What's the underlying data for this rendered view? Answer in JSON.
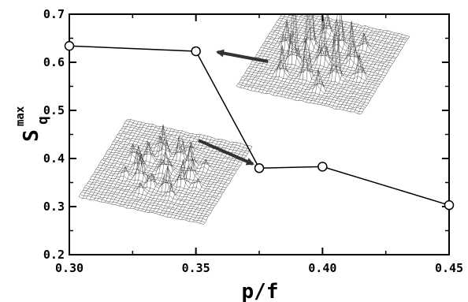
{
  "chart_data": {
    "type": "line",
    "x_label": "p/f",
    "y_label": "S",
    "y_label_sub": "q",
    "y_label_sup": "max",
    "xlim": [
      0.3,
      0.45
    ],
    "ylim": [
      0.2,
      0.7
    ],
    "x_ticks": [
      0.3,
      0.35,
      0.4,
      0.45
    ],
    "x_tick_labels": [
      "0.30",
      "0.35",
      "0.40",
      "0.45"
    ],
    "y_ticks": [
      0.2,
      0.3,
      0.4,
      0.5,
      0.6,
      0.7
    ],
    "y_tick_labels": [
      "0.2",
      "0.3",
      "0.4",
      "0.5",
      "0.6",
      "0.7"
    ],
    "series": [
      {
        "x": [
          0.3,
          0.35,
          0.375,
          0.4,
          0.45
        ],
        "y": [
          0.634,
          0.623,
          0.38,
          0.383,
          0.303
        ],
        "marker": "open-circle",
        "color": "#000000"
      }
    ],
    "insets": [
      {
        "type": "surface-plot",
        "description_key": "upper-right-structure-factor",
        "points_to": {
          "x": 0.35,
          "y": 0.623
        }
      },
      {
        "type": "surface-plot",
        "description_key": "lower-left-structure-factor",
        "points_to": {
          "x": 0.375,
          "y": 0.38
        }
      }
    ],
    "grid": false,
    "legend": "none"
  }
}
